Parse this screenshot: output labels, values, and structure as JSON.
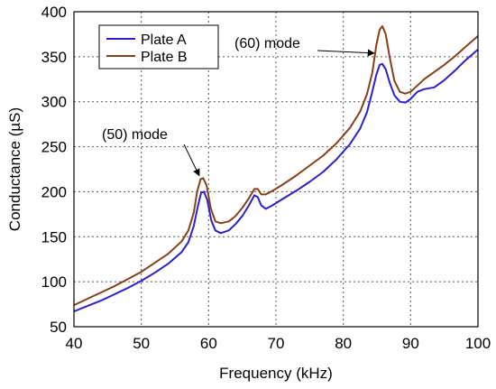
{
  "chart_data": {
    "type": "line",
    "xlabel": "Frequency (kHz)",
    "ylabel": "Conductance (µS)",
    "xlim": [
      40,
      100
    ],
    "ylim": [
      50,
      400
    ],
    "xticks": [
      40,
      50,
      60,
      70,
      80,
      90,
      100
    ],
    "yticks": [
      50,
      100,
      150,
      200,
      250,
      300,
      350,
      400
    ],
    "grid": true,
    "legend": {
      "placement": "top-left"
    },
    "series": [
      {
        "name": "Plate A",
        "color": "#2a1fd6",
        "x": [
          40,
          42,
          44,
          46,
          48,
          50,
          52,
          54,
          56,
          57,
          57.8,
          58.4,
          58.9,
          59.3,
          59.8,
          60.4,
          61,
          61.8,
          63,
          64,
          65,
          66,
          66.8,
          67.3,
          67.8,
          68.5,
          69.5,
          71,
          73,
          75,
          77,
          79,
          81,
          82.5,
          83.5,
          84.3,
          84.9,
          85.4,
          85.8,
          86.3,
          86.9,
          87.6,
          88.4,
          89.2,
          90,
          91,
          92,
          93.5,
          95,
          96.5,
          98,
          100
        ],
        "y": [
          67,
          73,
          79,
          86,
          93,
          101,
          110,
          120,
          133,
          144,
          162,
          184,
          199,
          200,
          191,
          168,
          157,
          154,
          157,
          164,
          173,
          185,
          196,
          194,
          185,
          181,
          185,
          192,
          201,
          211,
          222,
          236,
          253,
          270,
          288,
          311,
          330,
          341,
          342,
          336,
          321,
          307,
          300,
          299,
          303,
          311,
          314,
          316,
          324,
          334,
          345,
          358
        ]
      },
      {
        "name": "Plate B",
        "color": "#8b3d18",
        "x": [
          40,
          42,
          44,
          46,
          48,
          50,
          52,
          54,
          56,
          57,
          57.8,
          58.3,
          58.8,
          59.2,
          59.7,
          60.3,
          61,
          61.8,
          63,
          64,
          65,
          66,
          66.8,
          67.3,
          67.8,
          68.5,
          69.5,
          71,
          73,
          75,
          77,
          79,
          81,
          82.5,
          83.5,
          84.3,
          84.9,
          85.4,
          85.8,
          86.3,
          86.9,
          87.6,
          88.4,
          89.2,
          90,
          91,
          92,
          93.5,
          95,
          96.5,
          98,
          100
        ],
        "y": [
          74,
          81,
          88,
          95,
          103,
          111,
          121,
          131,
          145,
          157,
          177,
          200,
          214,
          215,
          207,
          182,
          167,
          165,
          167,
          173,
          182,
          193,
          203,
          203,
          197,
          197,
          201,
          208,
          218,
          229,
          240,
          254,
          271,
          289,
          308,
          332,
          363,
          380,
          384,
          375,
          349,
          323,
          311,
          309,
          311,
          318,
          325,
          333,
          341,
          350,
          360,
          373
        ]
      }
    ],
    "annotations": [
      {
        "text": "(50) mode",
        "x": 59,
        "y": 215
      },
      {
        "text": "(60) mode",
        "x": 85.1,
        "y": 352
      }
    ]
  }
}
